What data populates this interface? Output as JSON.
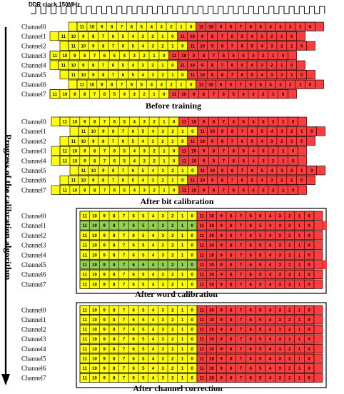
{
  "clock_label": "DDR clock 150MHz",
  "axis_label": "Progress of the calibration algorithm",
  "colors": {
    "yellow": "#ffff00",
    "red": "#ff3b3b",
    "green": "#92d050",
    "outline": "#000000"
  },
  "word_bits": [
    "11",
    "10",
    "9",
    "8",
    "7",
    "6",
    "5",
    "4",
    "3",
    "2",
    "1",
    "0"
  ],
  "panels": [
    {
      "caption": "Before training",
      "channels": [
        "Channel0",
        "Channel1",
        "Channel2",
        "Channel3",
        "Channel4",
        "Channel5",
        "Channel6",
        "Channel7"
      ]
    },
    {
      "caption": "After bit calibration",
      "channels": [
        "Channel0",
        "Channel1",
        "Channel2",
        "Channel3",
        "Channel4",
        "Channel5",
        "Channel6",
        "Channel7"
      ]
    },
    {
      "caption": "After word calibration",
      "channels": [
        "Channel0",
        "Channel1",
        "Channel2",
        "Channel3",
        "Channel4",
        "Channel5",
        "Channel6",
        "Channel7"
      ],
      "green_channels": [
        "Channel1",
        "Channel5"
      ]
    },
    {
      "caption": "After channel correction",
      "channels": [
        "Channel0",
        "Channel1",
        "Channel2",
        "Channel3",
        "Channel4",
        "Channel5",
        "Channel6",
        "Channel7"
      ]
    }
  ]
}
